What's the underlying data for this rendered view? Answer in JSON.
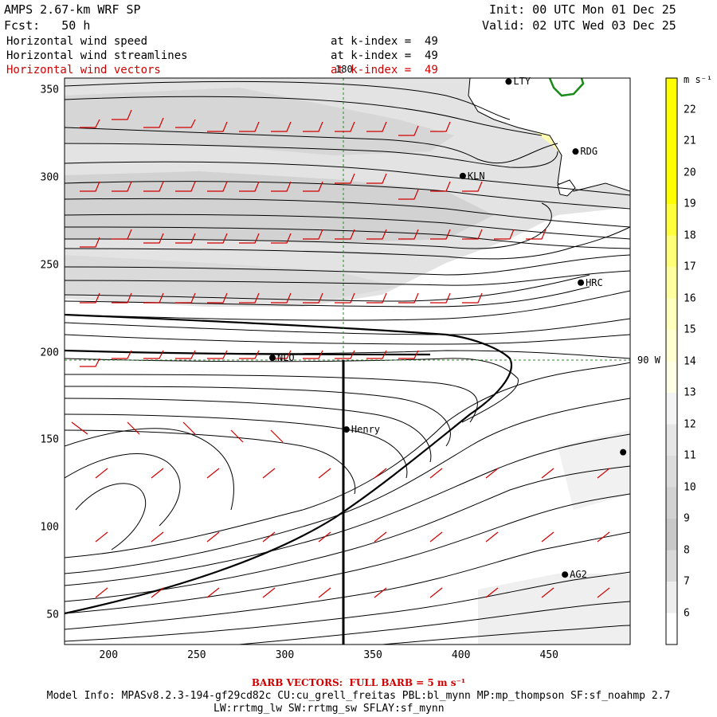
{
  "header": {
    "model": "AMPS 2.67-km WRF SP",
    "forecast_hour": "Fcst:   50 h",
    "init": "Init: 00 UTC Mon 01 Dec 25",
    "valid": "Valid: 02 UTC Wed 03 Dec 25",
    "fields": [
      {
        "name": "Horizontal wind speed",
        "level": "at k-index =  49",
        "color": "#000000"
      },
      {
        "name": "Horizontal wind streamlines",
        "level": "at k-index =  49",
        "color": "#000000"
      },
      {
        "name": "Horizontal wind vectors",
        "level": "at k-index =  49",
        "color": "#d00000"
      }
    ]
  },
  "map": {
    "x_axis": {
      "ticks": [
        "200",
        "250",
        "300",
        "350",
        "400",
        "450"
      ],
      "range": [
        175,
        496
      ]
    },
    "y_axis": {
      "ticks": [
        "50",
        "100",
        "150",
        "200",
        "250",
        "300",
        "350"
      ],
      "range": [
        33,
        357
      ]
    },
    "meridian_label": "180",
    "parallel_label": "90 W",
    "stations": [
      {
        "name": "LTY",
        "x": 427,
        "y": 355
      },
      {
        "name": "RDG",
        "x": 465,
        "y": 315
      },
      {
        "name": "KLN",
        "x": 401,
        "y": 301
      },
      {
        "name": "HRC",
        "x": 468,
        "y": 240
      },
      {
        "name": "NLO",
        "x": 293,
        "y": 197
      },
      {
        "name": "Henry",
        "x": 335,
        "y": 156
      },
      {
        "name": "",
        "x": 492,
        "y": 143
      },
      {
        "name": "AG2",
        "x": 459,
        "y": 73
      }
    ]
  },
  "colorbar": {
    "unit": "m s⁻¹",
    "levels": [
      "22",
      "21",
      "20",
      "19",
      "18",
      "17",
      "16",
      "15",
      "14",
      "13",
      "12",
      "11",
      "10",
      "9",
      "8",
      "7",
      "6"
    ],
    "colors": [
      "#ffff00",
      "#ffff00",
      "#ffff00",
      "#ffff00",
      "#ffff3c",
      "#ffff78",
      "#ffffa0",
      "#ffffbe",
      "#ffffd2",
      "#ffffe6",
      "#f4f4f4",
      "#e6e6e6",
      "#dcdcdc",
      "#d2d2d2",
      "#c8c8c8",
      "#d9d9d9",
      "#eeeeee",
      "#ffffff"
    ]
  },
  "footer": {
    "barb_caption": "BARB VECTORS:  FULL BARB = 5 m s⁻¹",
    "model_info": "Model Info: MPASv8.2.3-194-gf29cd82c CU:cu_grell_freitas PBL:bl_mynn MP:mp_thompson SF:sf_noahmp 2.7",
    "model_info_2": "LW:rrtmg_lw SW:rrtmg_sw SFLAY:sf_mynn"
  }
}
